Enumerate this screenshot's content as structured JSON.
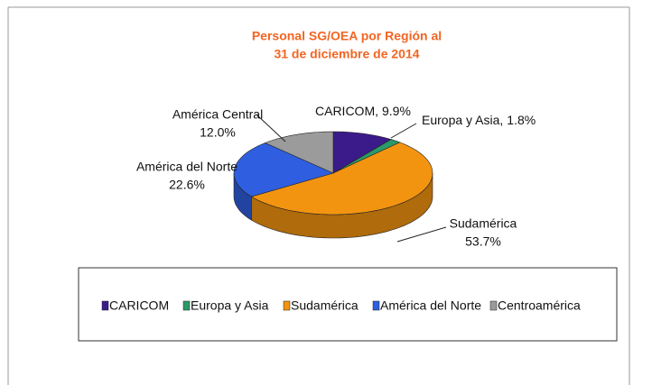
{
  "chart_data": {
    "type": "pie3d",
    "title": [
      "Personal SG/OEA por Región al",
      "31 de diciembre de 2014"
    ],
    "categories": [
      "CARICOM",
      "Europa y Asia",
      "Sudamérica",
      "América del Norte",
      "Centroamérica"
    ],
    "values": [
      9.9,
      1.8,
      53.7,
      22.6,
      12.0
    ],
    "value_labels": [
      "9.9%",
      "1.8%",
      "53.7%",
      "22.6%",
      "12.0%"
    ],
    "label_names": [
      "CARICOM,",
      "Europa y Asia,",
      "Sudamérica",
      "América del Norte",
      "América Central"
    ],
    "colors": [
      "#3b1b8a",
      "#2a9a68",
      "#f39410",
      "#2f5fe0",
      "#9b9b9b"
    ],
    "legend": "bottom"
  }
}
